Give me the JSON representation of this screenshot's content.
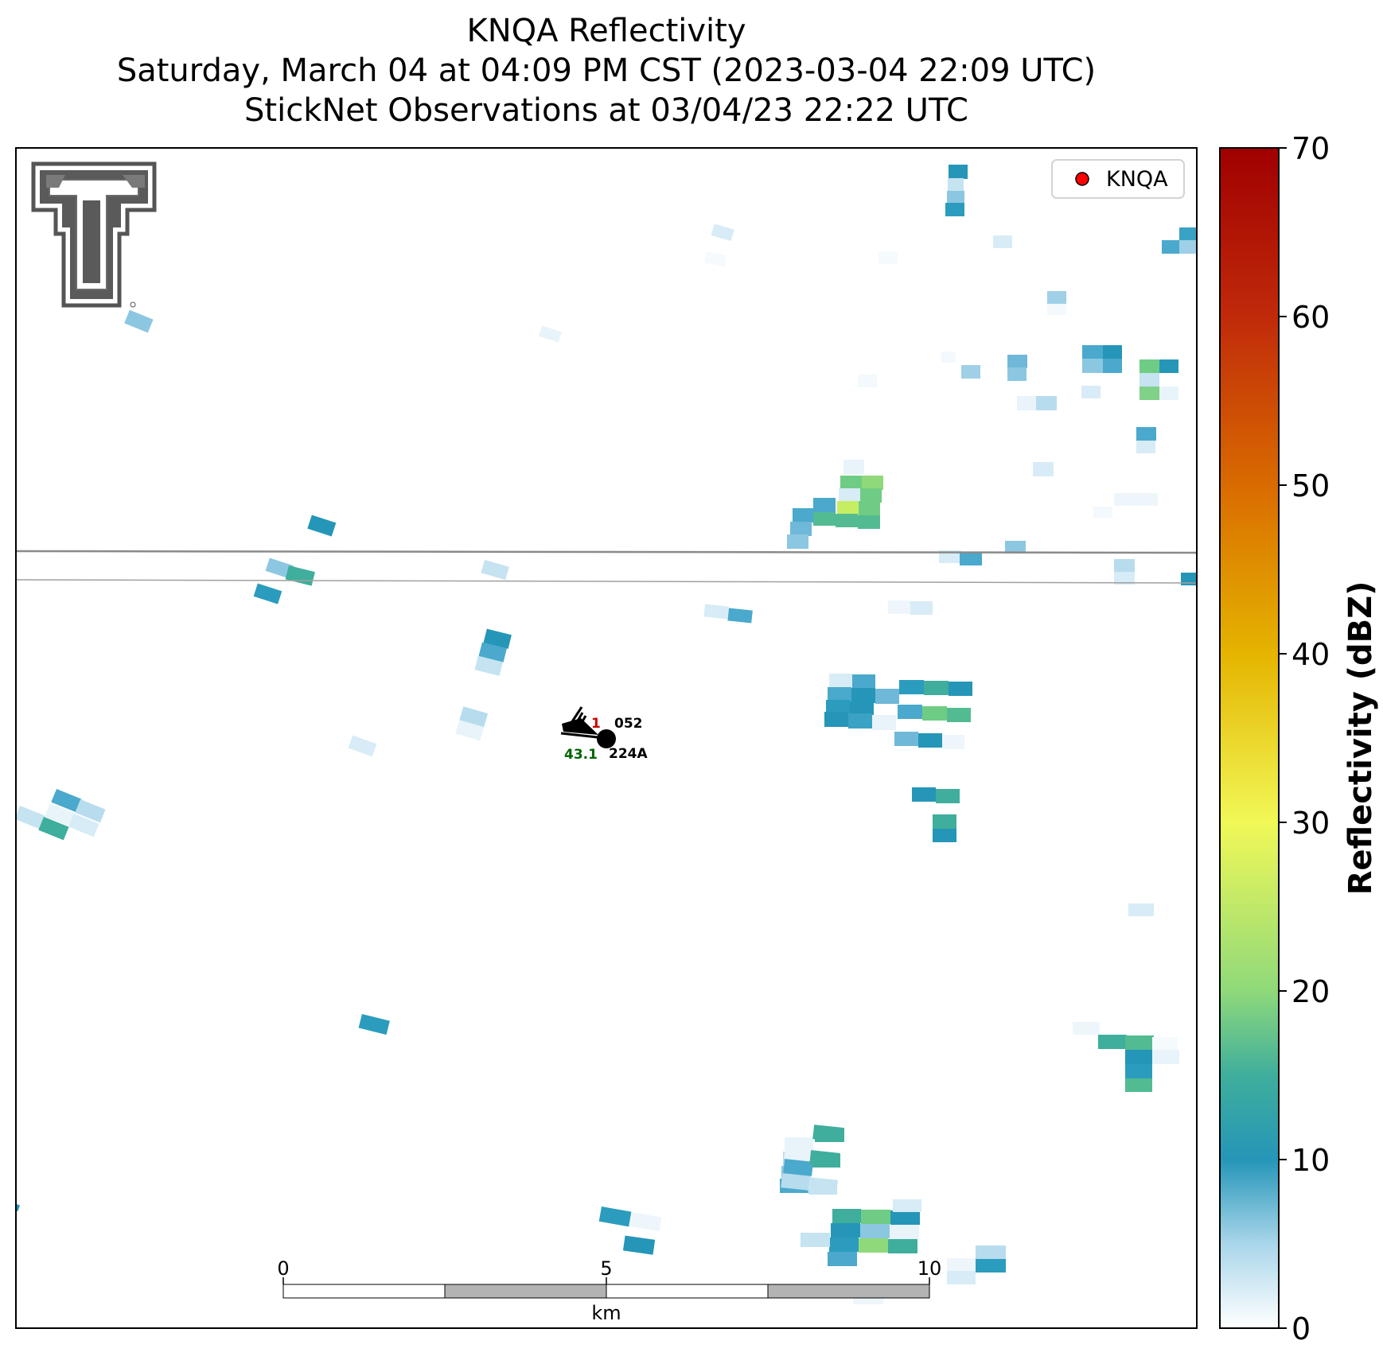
{
  "title": {
    "line1": "KNQA Reflectivity",
    "line2": "Saturday, March 04 at 04:09 PM CST (2023-03-04 22:09 UTC)",
    "line3": "StickNet Observations at 03/04/23 22:22 UTC"
  },
  "legend": {
    "label": "KNQA",
    "marker_color": "#ff0000"
  },
  "colorbar": {
    "label": "Reflectivity (dBZ)",
    "min": 0,
    "max": 70,
    "ticks": [
      "0",
      "10",
      "20",
      "30",
      "40",
      "50",
      "60",
      "70"
    ],
    "colors": [
      "#ffffff",
      "#2596b8",
      "#8fd97a",
      "#f1f857",
      "#e5b400",
      "#d96b00",
      "#c02a0a",
      "#a00000"
    ]
  },
  "scalebar": {
    "unit": "km",
    "ticks": [
      "0",
      "5",
      "10"
    ]
  },
  "station": {
    "id": "224A",
    "temperature_label": "1",
    "pressure_label": "052",
    "dewpoint_label": "43.1",
    "temperature_color": "#cc0000",
    "dewpoint_color": "#006400"
  },
  "logo": {
    "name": "texas-tech-double-t-logo"
  }
}
